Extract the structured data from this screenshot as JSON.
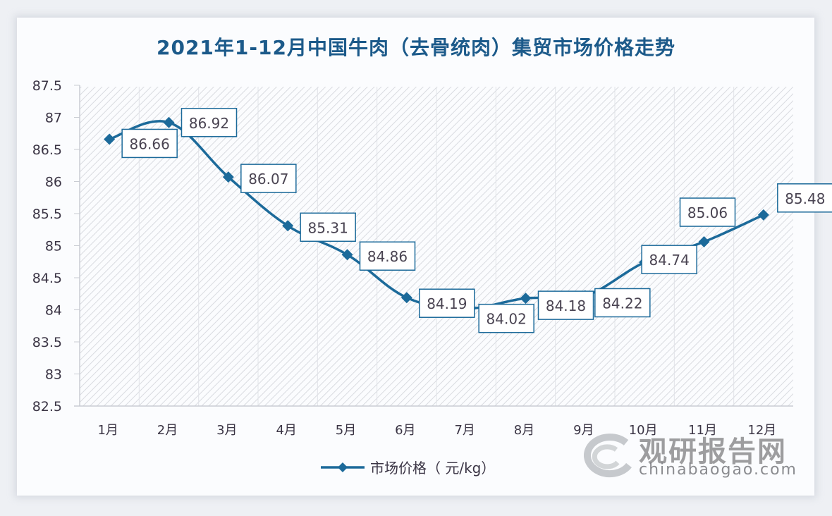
{
  "title": "2021年1-12月中国牛肉（去骨统肉）集贸市场价格走势",
  "legend": {
    "label": "市场价格（ 元/kg）",
    "color": "#1c6a9a"
  },
  "watermark": {
    "cn": "观研报告网",
    "en": "chinabaogao.com"
  },
  "colors": {
    "line": "#1c6a9a",
    "title": "#1c5a8a",
    "label_border": "#1c6a9a"
  },
  "chart_data": {
    "type": "line",
    "title": "2021年1-12月中国牛肉（去骨统肉）集贸市场价格走势",
    "xlabel": "",
    "ylabel": "",
    "categories": [
      "1月",
      "2月",
      "3月",
      "4月",
      "5月",
      "6月",
      "7月",
      "8月",
      "9月",
      "10月",
      "11月",
      "12月"
    ],
    "series": [
      {
        "name": "市场价格（ 元/kg）",
        "values": [
          86.66,
          86.92,
          86.07,
          85.31,
          84.86,
          84.19,
          84.02,
          84.18,
          84.22,
          84.74,
          85.06,
          85.48
        ]
      }
    ],
    "labels": [
      "86.66",
      "86.92",
      "86.07",
      "85.31",
      "84.86",
      "84.19",
      "84.02",
      "84.18",
      "84.22",
      "84.74",
      "85.06",
      "85.48"
    ],
    "yticks": [
      "87.5",
      "87",
      "86.5",
      "86",
      "85.5",
      "85",
      "84.5",
      "84",
      "83.5",
      "83",
      "82.5"
    ],
    "ylim": [
      82.5,
      87.5
    ],
    "grid": "vertical category gridlines, hatched plot background",
    "legend_position": "bottom"
  }
}
